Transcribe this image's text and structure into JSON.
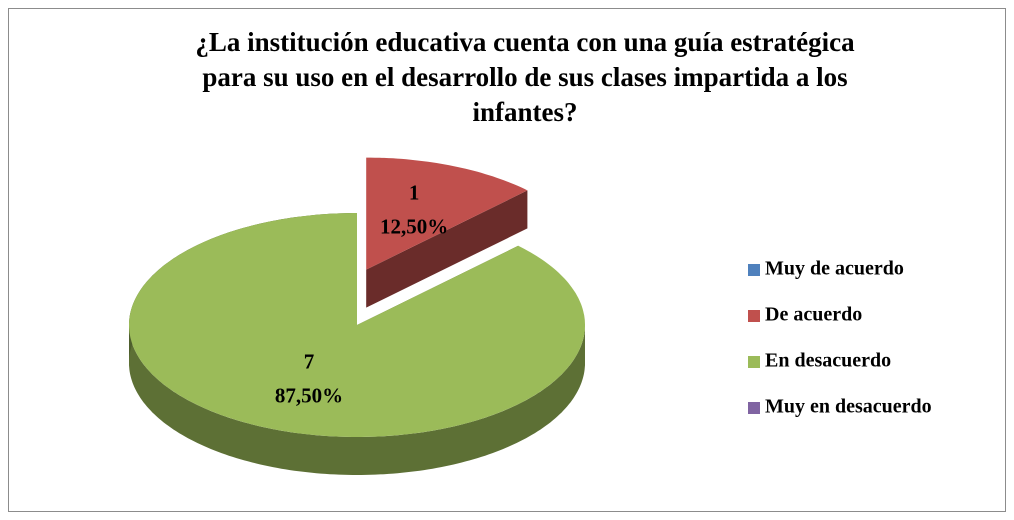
{
  "chart_data": {
    "type": "pie3d",
    "title": [
      "¿La institución educativa cuenta con una guía estratégica",
      "para su uso en el desarrollo de sus clases impartida a los",
      "infantes?"
    ],
    "categories": [
      "Muy de acuerdo",
      "De acuerdo",
      "En desacuerdo",
      "Muy en desacuerdo"
    ],
    "values": [
      0,
      1,
      7,
      0
    ],
    "percents": [
      0,
      12.5,
      87.5,
      0
    ],
    "percent_labels": [
      null,
      "12,50%",
      "87,50%",
      null
    ],
    "colors": [
      "#4f81bd",
      "#c0504d",
      "#9bbb59",
      "#8064a2"
    ],
    "exploded": [
      false,
      true,
      false,
      false
    ],
    "legend": "right"
  }
}
